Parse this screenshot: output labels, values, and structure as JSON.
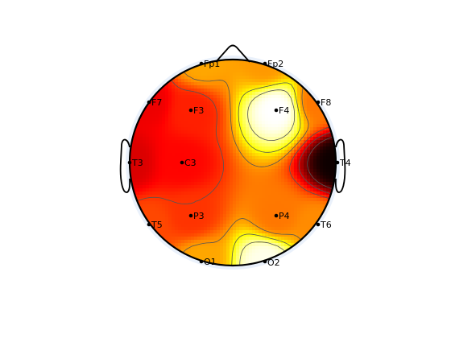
{
  "chart_data": {
    "type": "heatmap",
    "subtype": "eeg-scalp-topography",
    "title": "",
    "colormap": "hot",
    "contour_lines": true,
    "colors": {
      "head_outline": "#000000",
      "contour": "#555555",
      "electrode": "#000000",
      "rim_halo": "#eaf1fb"
    },
    "electrodes": [
      {
        "label": "Fp1",
        "value": 0.62
      },
      {
        "label": "Fp2",
        "value": 0.6
      },
      {
        "label": "F7",
        "value": 0.35
      },
      {
        "label": "F3",
        "value": 0.42
      },
      {
        "label": "F4",
        "value": 1.0
      },
      {
        "label": "F8",
        "value": 0.55
      },
      {
        "label": "T3",
        "value": 0.32
      },
      {
        "label": "C3",
        "value": 0.38
      },
      {
        "label": "T4",
        "value": 0.02
      },
      {
        "label": "T5",
        "value": 0.48
      },
      {
        "label": "P3",
        "value": 0.45
      },
      {
        "label": "P4",
        "value": 0.55
      },
      {
        "label": "T6",
        "value": 0.58
      },
      {
        "label": "O1",
        "value": 0.62
      },
      {
        "label": "O2",
        "value": 0.98
      }
    ]
  }
}
